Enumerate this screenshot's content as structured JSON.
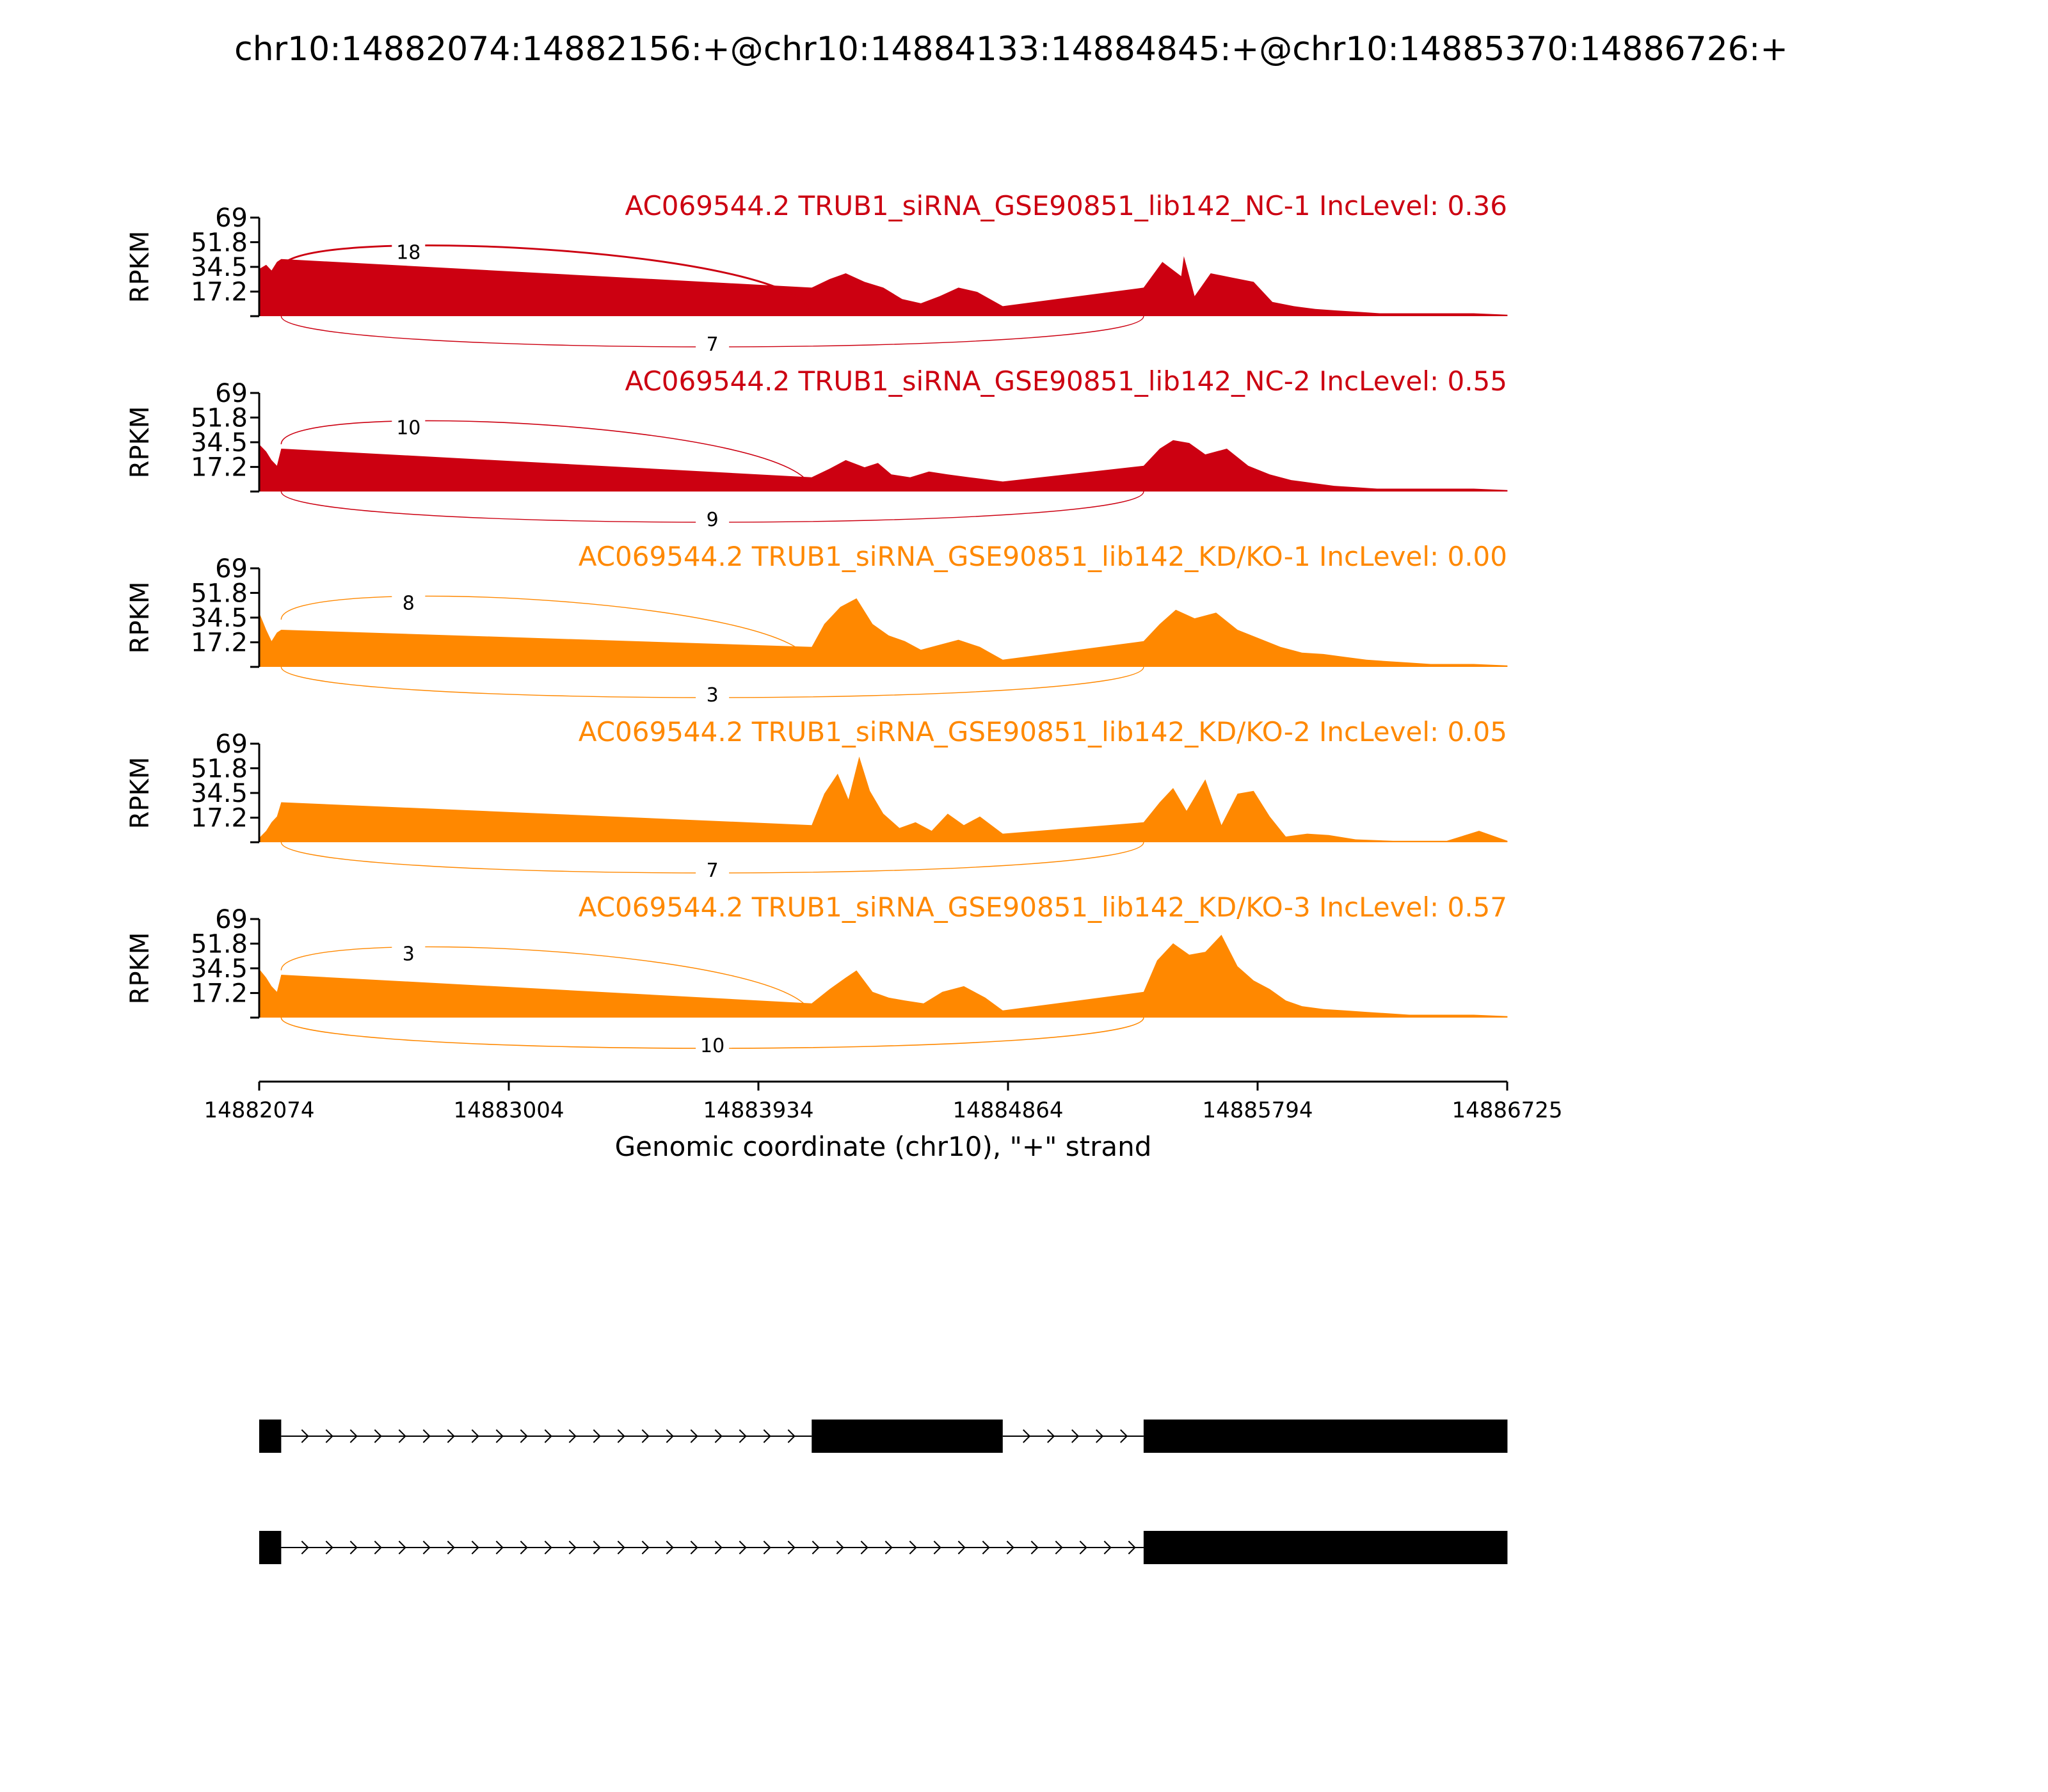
{
  "chart_data": {
    "type": "area",
    "title": "chr10:14882074:14882156:+@chr10:14884133:14884845:+@chr10:14885370:14886726:+",
    "xlabel": "Genomic coordinate (chr10), \"+\" strand",
    "ylabel": "RPKM",
    "xlim": [
      14882074,
      14886725
    ],
    "x_ticks": [
      "14882074",
      "14883004",
      "14883934",
      "14884864",
      "14885794",
      "14886725"
    ],
    "ylim": [
      0,
      69
    ],
    "y_ticks": [
      "17.2",
      "34.5",
      "51.8",
      "69"
    ],
    "grid": false,
    "tracks": [
      {
        "label": "AC069544.2 TRUB1_siRNA_GSE90851_lib142_NC-1 IncLevel: 0.36",
        "color": "#cc0011",
        "junctions": [
          {
            "from": 14882156,
            "to": 14884133,
            "count": "18",
            "side": "above"
          },
          {
            "from": 14882156,
            "to": 14885370,
            "count": "7",
            "side": "below"
          }
        ],
        "coverage": [
          [
            14882074,
            33
          ],
          [
            14882100,
            36
          ],
          [
            14882120,
            32
          ],
          [
            14882140,
            38
          ],
          [
            14882156,
            40
          ],
          [
            14884133,
            20
          ],
          [
            14884200,
            26
          ],
          [
            14884260,
            30
          ],
          [
            14884330,
            24
          ],
          [
            14884400,
            20
          ],
          [
            14884470,
            12
          ],
          [
            14884540,
            9
          ],
          [
            14884610,
            14
          ],
          [
            14884680,
            20
          ],
          [
            14884750,
            17
          ],
          [
            14884845,
            7
          ],
          [
            14885370,
            20
          ],
          [
            14885440,
            38
          ],
          [
            14885510,
            28
          ],
          [
            14885520,
            42
          ],
          [
            14885560,
            14
          ],
          [
            14885620,
            30
          ],
          [
            14885700,
            27
          ],
          [
            14885780,
            24
          ],
          [
            14885850,
            10
          ],
          [
            14885930,
            7
          ],
          [
            14886010,
            5
          ],
          [
            14886090,
            4
          ],
          [
            14886170,
            3
          ],
          [
            14886250,
            2
          ],
          [
            14886330,
            2
          ],
          [
            14886410,
            2
          ],
          [
            14886500,
            2
          ],
          [
            14886600,
            2
          ],
          [
            14886726,
            1
          ]
        ]
      },
      {
        "label": "AC069544.2 TRUB1_siRNA_GSE90851_lib142_NC-2 IncLevel: 0.55",
        "color": "#cc0011",
        "junctions": [
          {
            "from": 14882156,
            "to": 14884133,
            "count": "10",
            "side": "above"
          },
          {
            "from": 14882156,
            "to": 14885370,
            "count": "9",
            "side": "below"
          }
        ],
        "coverage": [
          [
            14882074,
            33
          ],
          [
            14882100,
            28
          ],
          [
            14882120,
            22
          ],
          [
            14882140,
            18
          ],
          [
            14882156,
            30
          ],
          [
            14884133,
            10
          ],
          [
            14884200,
            16
          ],
          [
            14884260,
            22
          ],
          [
            14884330,
            17
          ],
          [
            14884380,
            20
          ],
          [
            14884430,
            12
          ],
          [
            14884500,
            10
          ],
          [
            14884570,
            14
          ],
          [
            14884640,
            12
          ],
          [
            14884720,
            10
          ],
          [
            14884845,
            7
          ],
          [
            14885370,
            18
          ],
          [
            14885430,
            30
          ],
          [
            14885480,
            36
          ],
          [
            14885540,
            34
          ],
          [
            14885600,
            26
          ],
          [
            14885680,
            30
          ],
          [
            14885760,
            18
          ],
          [
            14885840,
            12
          ],
          [
            14885920,
            8
          ],
          [
            14886000,
            6
          ],
          [
            14886080,
            4
          ],
          [
            14886160,
            3
          ],
          [
            14886240,
            2
          ],
          [
            14886320,
            2
          ],
          [
            14886400,
            2
          ],
          [
            14886500,
            2
          ],
          [
            14886600,
            2
          ],
          [
            14886726,
            1
          ]
        ]
      },
      {
        "label": "AC069544.2 TRUB1_siRNA_GSE90851_lib142_KD/KO-1 IncLevel: 0.00",
        "color": "#ff8800",
        "junctions": [
          {
            "from": 14882156,
            "to": 14884133,
            "count": "8",
            "side": "above"
          },
          {
            "from": 14882156,
            "to": 14885370,
            "count": "3",
            "side": "below"
          }
        ],
        "coverage": [
          [
            14882074,
            38
          ],
          [
            14882100,
            26
          ],
          [
            14882120,
            18
          ],
          [
            14882140,
            24
          ],
          [
            14882156,
            26
          ],
          [
            14884133,
            14
          ],
          [
            14884180,
            30
          ],
          [
            14884240,
            42
          ],
          [
            14884300,
            48
          ],
          [
            14884360,
            30
          ],
          [
            14884420,
            22
          ],
          [
            14884480,
            18
          ],
          [
            14884540,
            12
          ],
          [
            14884600,
            15
          ],
          [
            14884680,
            19
          ],
          [
            14884760,
            14
          ],
          [
            14884845,
            5
          ],
          [
            14885370,
            18
          ],
          [
            14885430,
            30
          ],
          [
            14885490,
            40
          ],
          [
            14885560,
            34
          ],
          [
            14885640,
            38
          ],
          [
            14885720,
            26
          ],
          [
            14885800,
            20
          ],
          [
            14885880,
            14
          ],
          [
            14885960,
            10
          ],
          [
            14886040,
            9
          ],
          [
            14886120,
            7
          ],
          [
            14886200,
            5
          ],
          [
            14886280,
            4
          ],
          [
            14886360,
            3
          ],
          [
            14886440,
            2
          ],
          [
            14886520,
            2
          ],
          [
            14886600,
            2
          ],
          [
            14886726,
            1
          ]
        ]
      },
      {
        "label": "AC069544.2 TRUB1_siRNA_GSE90851_lib142_KD/KO-2 IncLevel: 0.05",
        "color": "#ff8800",
        "junctions": [
          {
            "from": 14882156,
            "to": 14885370,
            "count": "7",
            "side": "below"
          }
        ],
        "coverage": [
          [
            14882074,
            3
          ],
          [
            14882100,
            8
          ],
          [
            14882120,
            14
          ],
          [
            14882140,
            18
          ],
          [
            14882156,
            28
          ],
          [
            14884133,
            12
          ],
          [
            14884180,
            34
          ],
          [
            14884230,
            48
          ],
          [
            14884270,
            30
          ],
          [
            14884310,
            60
          ],
          [
            14884350,
            36
          ],
          [
            14884400,
            20
          ],
          [
            14884460,
            10
          ],
          [
            14884520,
            14
          ],
          [
            14884580,
            8
          ],
          [
            14884640,
            20
          ],
          [
            14884700,
            12
          ],
          [
            14884760,
            18
          ],
          [
            14884845,
            6
          ],
          [
            14885370,
            14
          ],
          [
            14885430,
            28
          ],
          [
            14885480,
            38
          ],
          [
            14885530,
            22
          ],
          [
            14885600,
            44
          ],
          [
            14885660,
            12
          ],
          [
            14885720,
            34
          ],
          [
            14885780,
            36
          ],
          [
            14885840,
            18
          ],
          [
            14885900,
            4
          ],
          [
            14885980,
            6
          ],
          [
            14886060,
            5
          ],
          [
            14886160,
            2
          ],
          [
            14886300,
            1
          ],
          [
            14886500,
            1
          ],
          [
            14886620,
            8
          ],
          [
            14886726,
            1
          ]
        ]
      },
      {
        "label": "AC069544.2 TRUB1_siRNA_GSE90851_lib142_KD/KO-3 IncLevel: 0.57",
        "color": "#ff8800",
        "junctions": [
          {
            "from": 14882156,
            "to": 14884133,
            "count": "3",
            "side": "above"
          },
          {
            "from": 14882156,
            "to": 14885370,
            "count": "10",
            "side": "below"
          }
        ],
        "coverage": [
          [
            14882074,
            34
          ],
          [
            14882100,
            28
          ],
          [
            14882120,
            22
          ],
          [
            14882140,
            18
          ],
          [
            14882156,
            30
          ],
          [
            14884133,
            10
          ],
          [
            14884200,
            20
          ],
          [
            14884260,
            28
          ],
          [
            14884300,
            33
          ],
          [
            14884360,
            18
          ],
          [
            14884420,
            14
          ],
          [
            14884480,
            12
          ],
          [
            14884550,
            10
          ],
          [
            14884620,
            18
          ],
          [
            14884700,
            22
          ],
          [
            14884780,
            14
          ],
          [
            14884845,
            5
          ],
          [
            14885370,
            18
          ],
          [
            14885420,
            40
          ],
          [
            14885480,
            52
          ],
          [
            14885540,
            44
          ],
          [
            14885600,
            46
          ],
          [
            14885660,
            58
          ],
          [
            14885720,
            36
          ],
          [
            14885780,
            26
          ],
          [
            14885840,
            20
          ],
          [
            14885900,
            12
          ],
          [
            14885960,
            8
          ],
          [
            14886040,
            6
          ],
          [
            14886120,
            5
          ],
          [
            14886200,
            4
          ],
          [
            14886280,
            3
          ],
          [
            14886360,
            2
          ],
          [
            14886440,
            2
          ],
          [
            14886520,
            2
          ],
          [
            14886600,
            2
          ],
          [
            14886726,
            1
          ]
        ]
      }
    ],
    "isoforms": [
      {
        "exons": [
          [
            14882074,
            14882156
          ],
          [
            14884133,
            14884845
          ],
          [
            14885370,
            14886726
          ]
        ]
      },
      {
        "exons": [
          [
            14882074,
            14882156
          ],
          [
            14885370,
            14886726
          ]
        ]
      }
    ]
  }
}
